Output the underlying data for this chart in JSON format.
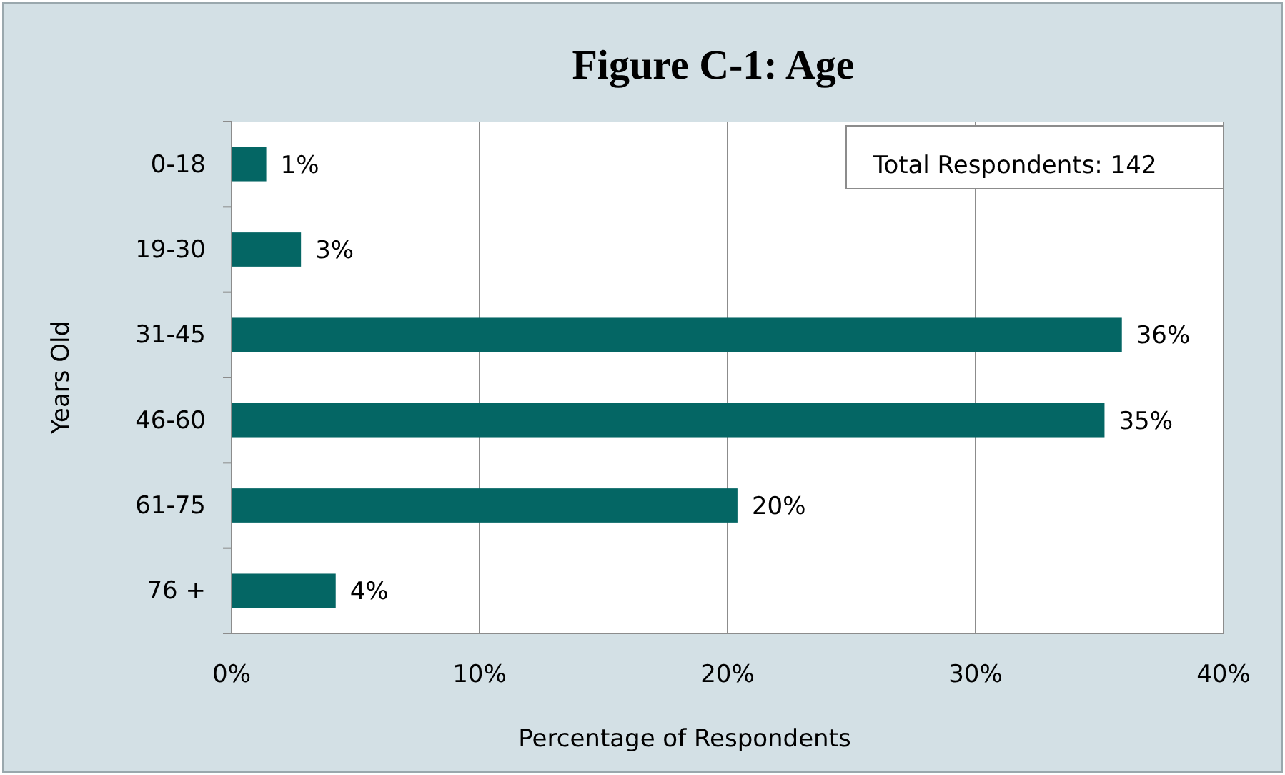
{
  "chart_data": {
    "type": "bar",
    "orientation": "horizontal",
    "title": "Figure C-1: Age",
    "xlabel": "Percentage of Respondents",
    "ylabel": "Years Old",
    "categories": [
      "0-18",
      "19-30",
      "31-45",
      "46-60",
      "61-75",
      "76 +"
    ],
    "values": [
      1.4,
      2.8,
      35.9,
      35.2,
      20.4,
      4.2
    ],
    "value_labels": [
      "1%",
      "3%",
      "36%",
      "35%",
      "20%",
      "4%"
    ],
    "color": "#046664",
    "xlim": [
      0,
      40
    ],
    "xticks": [
      {
        "value": 0,
        "label": "0%"
      },
      {
        "value": 10,
        "label": "10%"
      },
      {
        "value": 20,
        "label": "20%"
      },
      {
        "value": 30,
        "label": "30%"
      },
      {
        "value": 40,
        "label": "40%"
      }
    ],
    "grid": "x",
    "annotations": [
      "Total Respondents: 142"
    ]
  }
}
